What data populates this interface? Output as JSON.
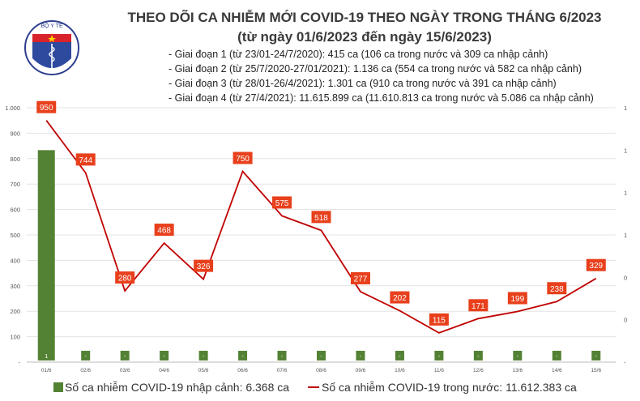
{
  "header": {
    "logo_text_top": "BỘ Y TẾ",
    "logo_text_bottom": "MINISTRY OF HEALTH",
    "title": "THEO DÕI CA NHIỄM MỚI COVID-19 THEO NGÀY TRONG THÁNG 6/2023",
    "subtitle": "(từ ngày 01/6/2023 đến ngày 15/6/2023)",
    "phases": [
      "- Giai đoạn 1 (từ 23/01-24/7/2020): 415 ca (106 ca trong nước và 309 ca nhập cảnh)",
      "- Giai đoạn 2 (từ 25/7/2020-27/01/2021): 1.136 ca (554 ca trong nước và 582 ca nhập cảnh)",
      "- Giai đoạn 3 (từ 28/01-26/4/2021): 1.301 ca (910 ca trong nước và 391 ca nhập cảnh)",
      "- Giai đoạn 4 (từ 27/4/2021): 11.615.899 ca (11.610.813 ca trong nước và 5.086 ca nhập cảnh)"
    ]
  },
  "chart_data": {
    "type": "bar+line",
    "categories": [
      "01/6",
      "02/6",
      "03/6",
      "04/6",
      "05/6",
      "06/6",
      "07/6",
      "08/6",
      "09/6",
      "10/6",
      "11/6",
      "12/6",
      "13/6",
      "14/6",
      "15/6"
    ],
    "left_axis": {
      "ylim": [
        0,
        1000
      ],
      "ticks": [
        0,
        100,
        200,
        300,
        400,
        500,
        600,
        700,
        800,
        900,
        1000
      ],
      "tick_labels": [
        "-",
        "100",
        "200",
        "300",
        "400",
        "500",
        "600",
        "700",
        "800",
        "900",
        "1.000"
      ]
    },
    "right_axis": {
      "ylim": [
        0,
        1.2
      ],
      "ticks": [
        0,
        0.2,
        0.4,
        0.6,
        0.8,
        1.0,
        1.2
      ],
      "tick_labels": [
        "-",
        "0",
        "0",
        "1",
        "1",
        "1",
        "1"
      ]
    },
    "grid": true,
    "legend_position": "bottom",
    "series": [
      {
        "name": "Số ca nhiễm COVID-19 nhập cảnh: 6.368 ca",
        "type": "bar",
        "axis": "right",
        "color": "#548235",
        "values": [
          1,
          0,
          0,
          0,
          0,
          0,
          0,
          0,
          0,
          0,
          0,
          0,
          0,
          0,
          0
        ],
        "data_labels": [
          "1",
          "-",
          "-",
          "-",
          "-",
          "-",
          "-",
          "-",
          "-",
          "-",
          "-",
          "-",
          "-",
          "-",
          "-"
        ]
      },
      {
        "name": "Số ca nhiễm COVID-19 trong nước: 11.612.383 ca",
        "type": "line",
        "axis": "left",
        "color": "#c00000",
        "label_color": "#e8401c",
        "values": [
          950,
          744,
          280,
          468,
          326,
          750,
          575,
          518,
          277,
          202,
          115,
          171,
          199,
          238,
          329
        ],
        "data_labels": [
          "950",
          "744",
          "280",
          "468",
          "326",
          "750",
          "575",
          "518",
          "277",
          "202",
          "115",
          "171",
          "199",
          "238",
          "329"
        ]
      }
    ]
  }
}
